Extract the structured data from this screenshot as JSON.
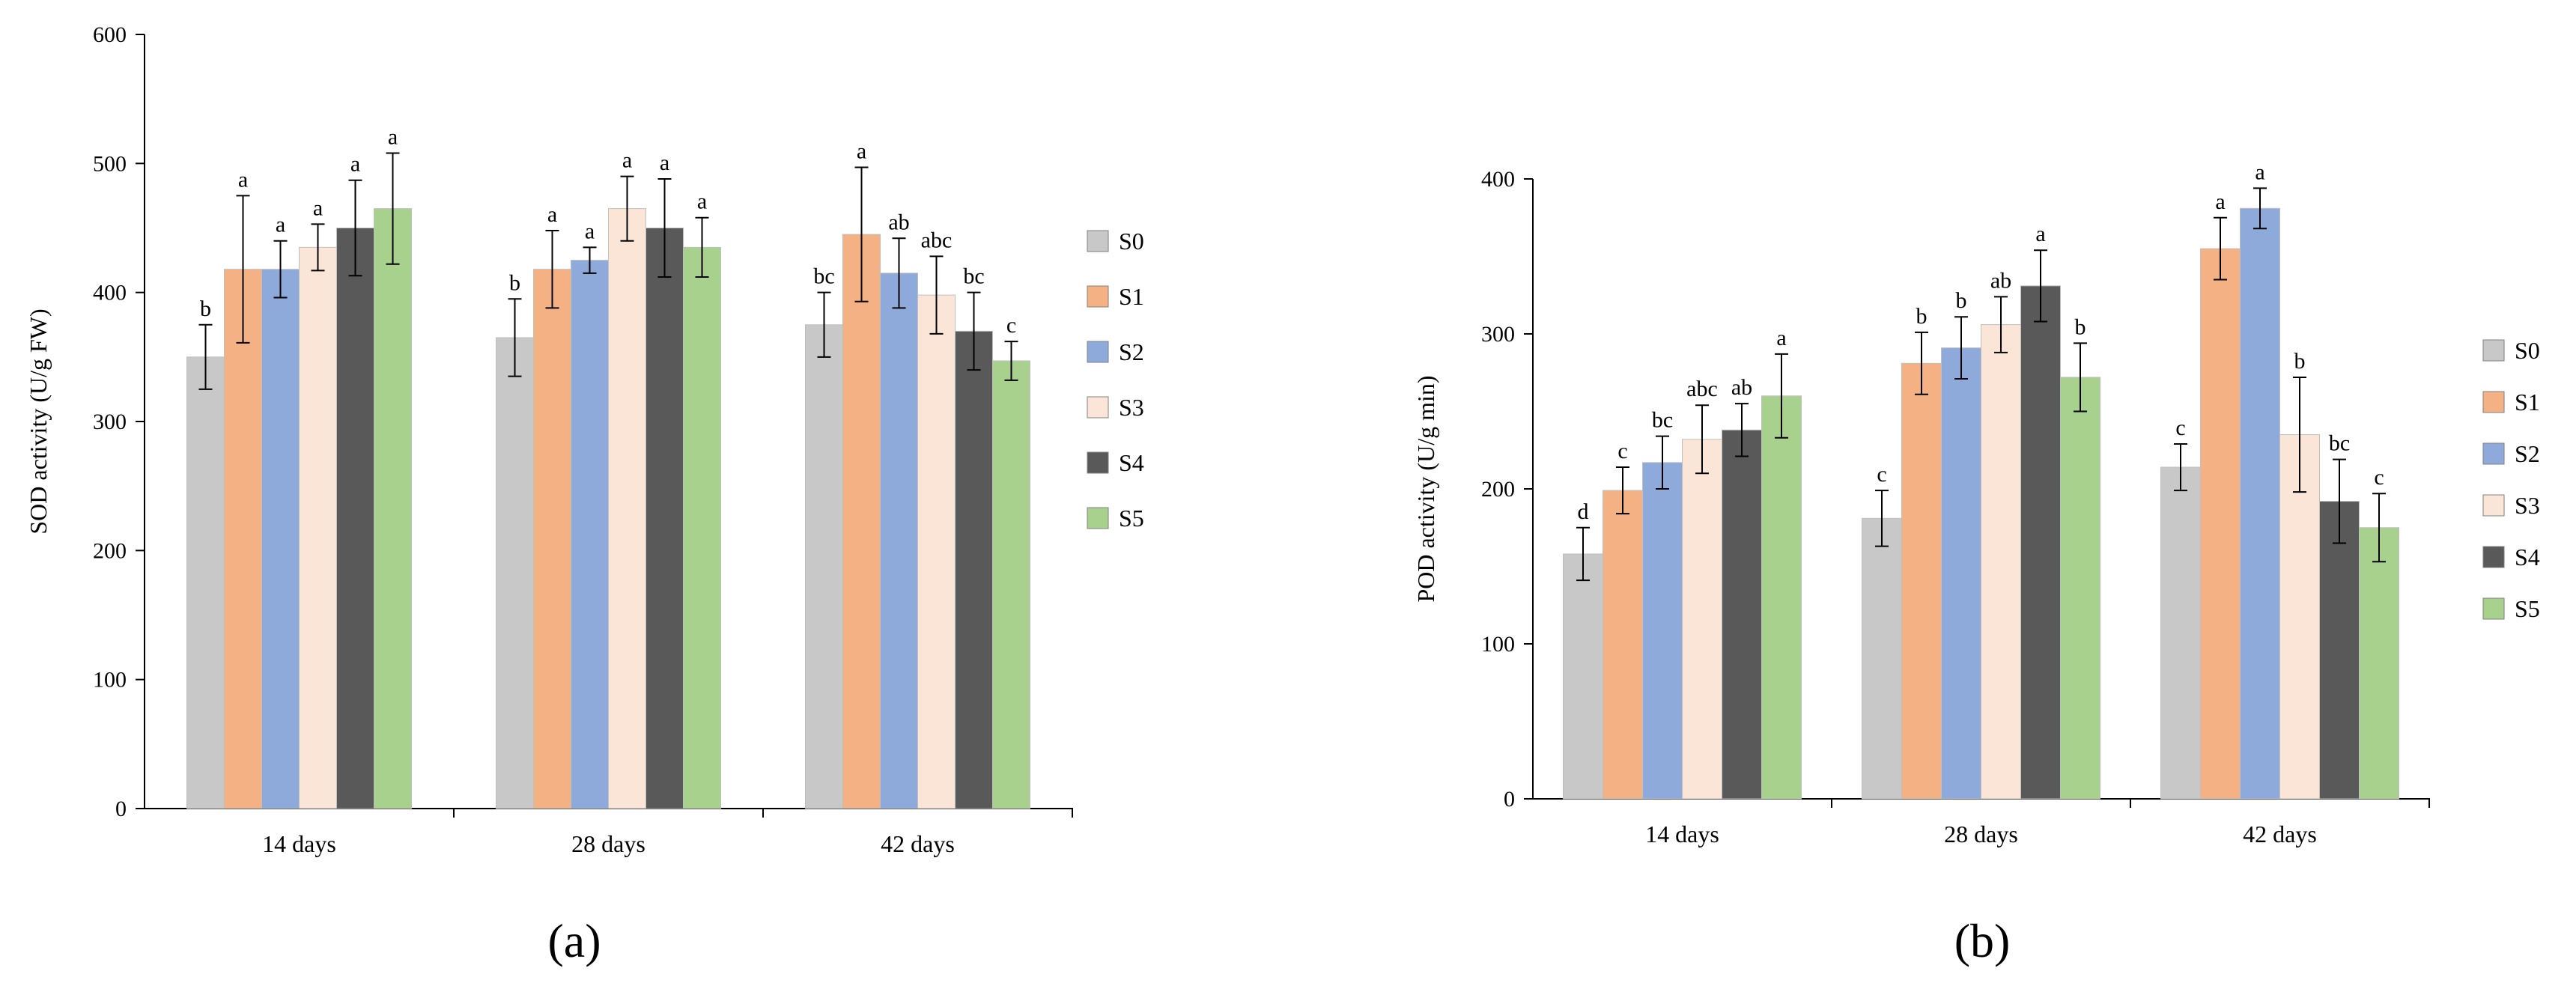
{
  "chart_data": [
    {
      "type": "bar",
      "panel_label": "(a)",
      "title": "",
      "xlabel": "",
      "ylabel": "SOD activity (U/g FW)",
      "ylim": [
        0,
        600
      ],
      "yticks": [
        "0",
        "100",
        "200",
        "300",
        "400",
        "500",
        "600"
      ],
      "categories": [
        "14 days",
        "28 days",
        "42 days"
      ],
      "legend_position": "right",
      "series": [
        {
          "name": "S0",
          "color": "#c8c8c8",
          "values": [
            350,
            365,
            375
          ],
          "errors": [
            25,
            30,
            25
          ],
          "labels": [
            "b",
            "b",
            "bc"
          ]
        },
        {
          "name": "S1",
          "color": "#f4b183",
          "values": [
            418,
            418,
            445
          ],
          "errors": [
            57,
            30,
            52
          ],
          "labels": [
            "a",
            "a",
            "a"
          ]
        },
        {
          "name": "S2",
          "color": "#8eaadb",
          "values": [
            418,
            425,
            415
          ],
          "errors": [
            22,
            10,
            27
          ],
          "labels": [
            "a",
            "a",
            "ab"
          ]
        },
        {
          "name": "S3",
          "color": "#fbe5d6",
          "values": [
            435,
            465,
            398
          ],
          "errors": [
            18,
            25,
            30
          ],
          "labels": [
            "a",
            "a",
            "abc"
          ]
        },
        {
          "name": "S4",
          "color": "#595959",
          "values": [
            450,
            450,
            370
          ],
          "errors": [
            37,
            38,
            30
          ],
          "labels": [
            "a",
            "a",
            "bc"
          ]
        },
        {
          "name": "S5",
          "color": "#a9d18e",
          "values": [
            465,
            435,
            347
          ],
          "errors": [
            43,
            23,
            15
          ],
          "labels": [
            "a",
            "a",
            "c"
          ]
        }
      ]
    },
    {
      "type": "bar",
      "panel_label": "(b)",
      "title": "",
      "xlabel": "",
      "ylabel": "POD activity (U/g min)",
      "ylim": [
        0,
        400
      ],
      "yticks": [
        "0",
        "100",
        "200",
        "300",
        "400"
      ],
      "categories": [
        "14 days",
        "28 days",
        "42 days"
      ],
      "legend_position": "right",
      "series": [
        {
          "name": "S0",
          "color": "#c8c8c8",
          "values": [
            158,
            181,
            214
          ],
          "errors": [
            17,
            18,
            15
          ],
          "labels": [
            "d",
            "c",
            "c"
          ]
        },
        {
          "name": "S1",
          "color": "#f4b183",
          "values": [
            199,
            281,
            355
          ],
          "errors": [
            15,
            20,
            20
          ],
          "labels": [
            "c",
            "b",
            "a"
          ]
        },
        {
          "name": "S2",
          "color": "#8eaadb",
          "values": [
            217,
            291,
            381
          ],
          "errors": [
            17,
            20,
            13
          ],
          "labels": [
            "bc",
            "b",
            "a"
          ]
        },
        {
          "name": "S3",
          "color": "#fbe5d6",
          "values": [
            232,
            306,
            235
          ],
          "errors": [
            22,
            18,
            37
          ],
          "labels": [
            "abc",
            "ab",
            "b"
          ]
        },
        {
          "name": "S4",
          "color": "#595959",
          "values": [
            238,
            331,
            192
          ],
          "errors": [
            17,
            23,
            27
          ],
          "labels": [
            "ab",
            "a",
            "bc"
          ]
        },
        {
          "name": "S5",
          "color": "#a9d18e",
          "values": [
            260,
            272,
            175
          ],
          "errors": [
            27,
            22,
            22
          ],
          "labels": [
            "a",
            "b",
            "c"
          ]
        }
      ]
    }
  ]
}
